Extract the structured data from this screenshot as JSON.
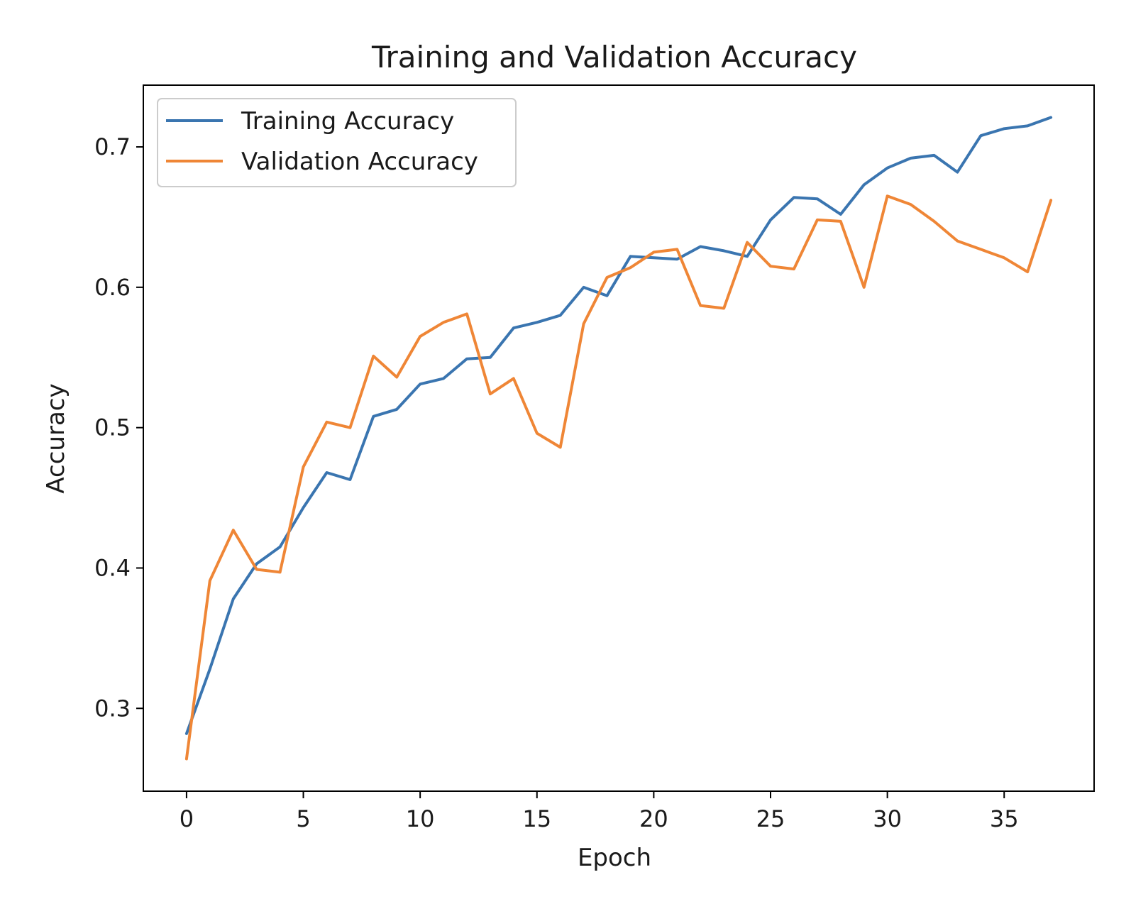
{
  "chart_data": {
    "type": "line",
    "title": "Training and Validation Accuracy",
    "xlabel": "Epoch",
    "ylabel": "Accuracy",
    "xlim": [
      -1.85,
      38.85
    ],
    "ylim": [
      0.241,
      0.744
    ],
    "xticks": [
      0,
      5,
      10,
      15,
      20,
      25,
      30,
      35
    ],
    "yticks": [
      0.3,
      0.4,
      0.5,
      0.6,
      0.7
    ],
    "ytick_labels": [
      "0.3",
      "0.4",
      "0.5",
      "0.6",
      "0.7"
    ],
    "legend_position": "upper-left",
    "x": [
      0,
      1,
      2,
      3,
      4,
      5,
      6,
      7,
      8,
      9,
      10,
      11,
      12,
      13,
      14,
      15,
      16,
      17,
      18,
      19,
      20,
      21,
      22,
      23,
      24,
      25,
      26,
      27,
      28,
      29,
      30,
      31,
      32,
      33,
      34,
      35,
      36,
      37
    ],
    "series": [
      {
        "name": "Training Accuracy",
        "color": "#3a75b0",
        "values": [
          0.282,
          0.328,
          0.378,
          0.403,
          0.415,
          0.443,
          0.468,
          0.463,
          0.508,
          0.513,
          0.531,
          0.535,
          0.549,
          0.55,
          0.571,
          0.575,
          0.58,
          0.6,
          0.594,
          0.622,
          0.621,
          0.62,
          0.629,
          0.626,
          0.622,
          0.648,
          0.664,
          0.663,
          0.652,
          0.673,
          0.685,
          0.692,
          0.694,
          0.682,
          0.708,
          0.713,
          0.715,
          0.721
        ]
      },
      {
        "name": "Validation Accuracy",
        "color": "#ef8636",
        "values": [
          0.264,
          0.391,
          0.427,
          0.399,
          0.397,
          0.472,
          0.504,
          0.5,
          0.551,
          0.536,
          0.565,
          0.575,
          0.581,
          0.524,
          0.535,
          0.496,
          0.486,
          0.574,
          0.607,
          0.614,
          0.625,
          0.627,
          0.587,
          0.585,
          0.632,
          0.615,
          0.613,
          0.648,
          0.647,
          0.6,
          0.665,
          0.659,
          0.647,
          0.633,
          0.627,
          0.621,
          0.611,
          0.662
        ]
      }
    ]
  }
}
